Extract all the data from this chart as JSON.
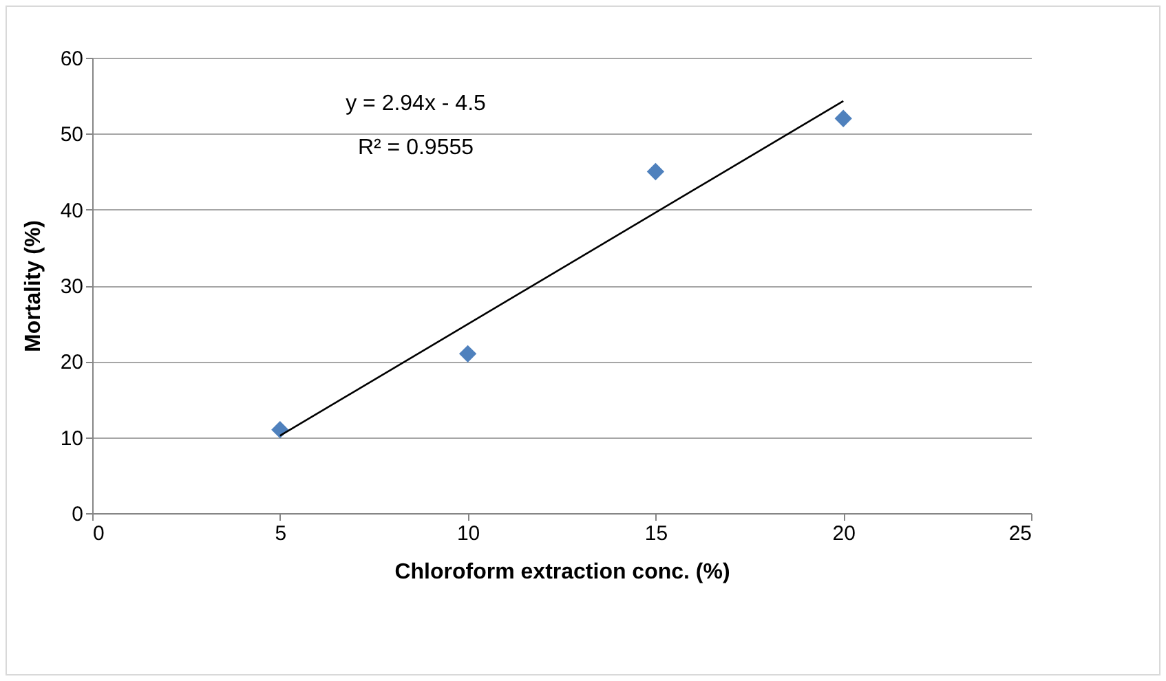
{
  "chart_data": {
    "type": "scatter",
    "xlabel": "Chloroform extraction conc. (%)",
    "ylabel": "Mortality (%)",
    "xlim": [
      0,
      25
    ],
    "xticks": [
      0,
      5,
      10,
      15,
      20,
      25
    ],
    "ylim": [
      0,
      60
    ],
    "yticks": [
      0,
      10,
      20,
      30,
      40,
      50,
      60
    ],
    "grid": "y",
    "annotations": [
      "y = 2.94x - 4.5",
      "R² = 0.9555"
    ],
    "series": [
      {
        "marker": "diamond",
        "color": "#4f81bd",
        "x": [
          5,
          10,
          15,
          20
        ],
        "values": [
          11,
          21,
          45,
          52
        ]
      },
      {
        "type": "line",
        "marker": "none",
        "color": "#000000",
        "x": [
          5,
          20
        ],
        "values": [
          10.2,
          54.3
        ]
      }
    ]
  }
}
